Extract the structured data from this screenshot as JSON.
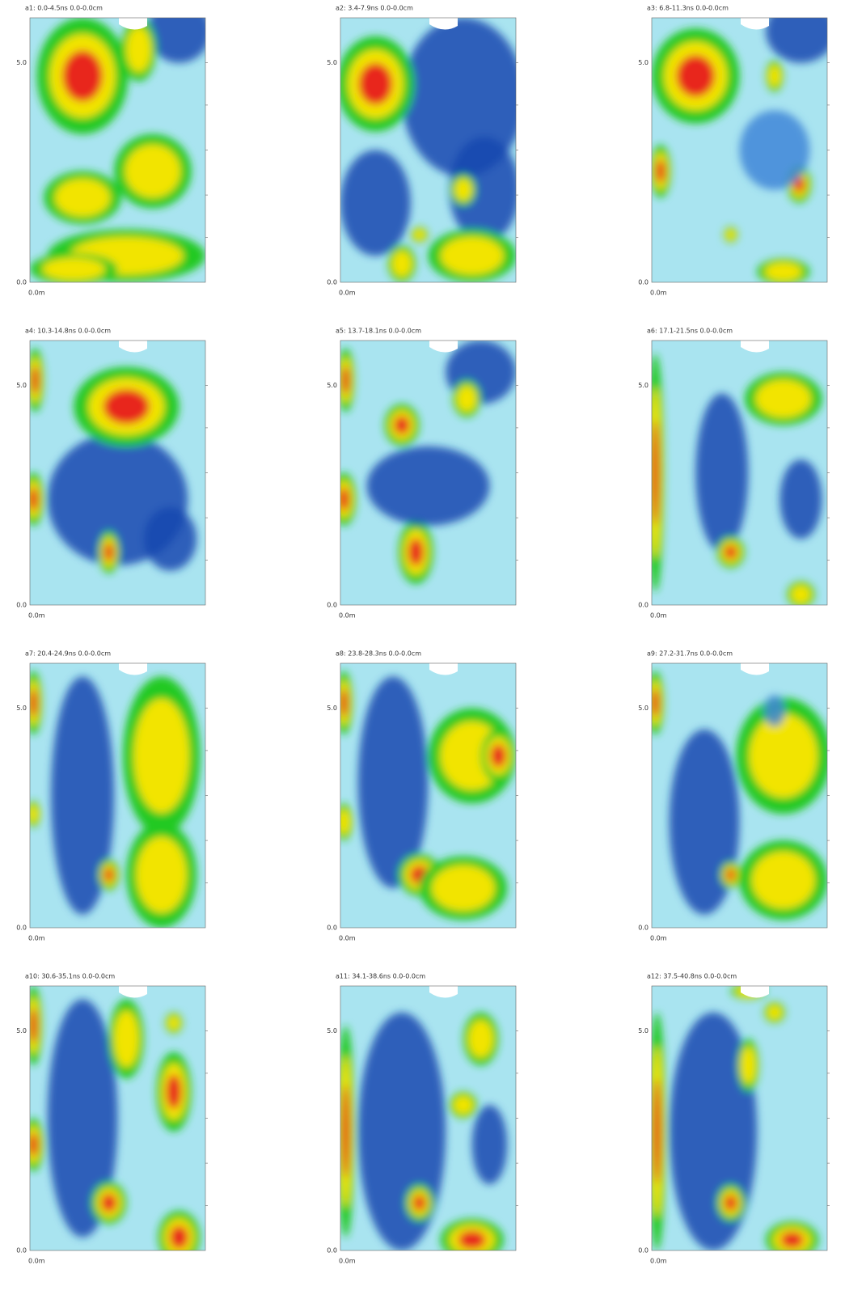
{
  "panels": [
    {
      "label": "a1:  0.0-4.5ns  0.0-0.0cm",
      "y_ticks": [
        "5.0",
        "0.0"
      ],
      "x_label": "0.0m"
    },
    {
      "label": "a2:  3.4-7.9ns  0.0-0.0cm",
      "y_ticks": [
        "5.0",
        "0.0"
      ],
      "x_label": "0.0m"
    },
    {
      "label": "a3:  6.8-11.3ns  0.0-0.0cm",
      "y_ticks": [
        "5.0",
        "0.0"
      ],
      "x_label": "0.0m"
    },
    {
      "label": "a4:  10.3-14.8ns  0.0-0.0cm",
      "y_ticks": [
        "5.0",
        "0.0"
      ],
      "x_label": "0.0m"
    },
    {
      "label": "a5:  13.7-18.1ns  0.0-0.0cm",
      "y_ticks": [
        "5.0",
        "0.0"
      ],
      "x_label": "0.0m"
    },
    {
      "label": "a6:  17.1-21.5ns  0.0-0.0cm",
      "y_ticks": [
        "5.0",
        "0.0"
      ],
      "x_label": "0.0m"
    },
    {
      "label": "a7:  20.4-24.9ns  0.0-0.0cm",
      "y_ticks": [
        "5.0",
        "0.0"
      ],
      "x_label": "0.0m"
    },
    {
      "label": "a8:  23.8-28.3ns  0.0-0.0cm",
      "y_ticks": [
        "5.0",
        "0.0"
      ],
      "x_label": "0.0m"
    },
    {
      "label": "a9:  27.2-31.7ns  0.0-0.0cm",
      "y_ticks": [
        "5.0",
        "0.0"
      ],
      "x_label": "0.0m"
    },
    {
      "label": "a10:  30.6-35.1ns  0.0-0.0cm",
      "y_ticks": [
        "5.0",
        "0.0"
      ],
      "x_label": "0.0m"
    },
    {
      "label": "a11:  34.1-38.6ns  0.0-0.0cm",
      "y_ticks": [
        "5.0",
        "0.0"
      ],
      "x_label": "0.0m"
    },
    {
      "label": "a12:  37.5-40.8ns  0.0-0.0cm",
      "y_ticks": [
        "5.0",
        "0.0"
      ],
      "x_label": "0.0m"
    }
  ]
}
